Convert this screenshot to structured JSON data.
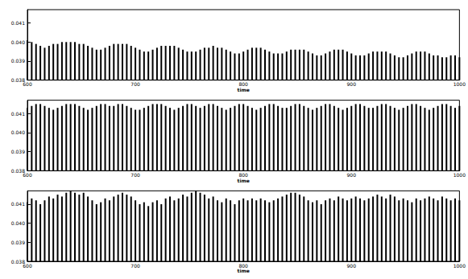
{
  "chart_data": [
    {
      "type": "bar",
      "x_label": "time",
      "color": "#000000",
      "xlim": [
        600,
        1000
      ],
      "xticks": [
        600,
        700,
        800,
        900,
        1000
      ],
      "ylim": [
        0.038,
        0.0417
      ],
      "yticks": [
        0.038,
        0.039,
        {
          "value": 0.04,
          "label": "0.040"
        },
        0.041
      ],
      "x": [
        600,
        604,
        608,
        612,
        616,
        620,
        624,
        628,
        632,
        636,
        640,
        644,
        648,
        652,
        656,
        660,
        664,
        668,
        672,
        676,
        680,
        684,
        688,
        692,
        696,
        700,
        704,
        708,
        712,
        716,
        720,
        724,
        728,
        732,
        736,
        740,
        744,
        748,
        752,
        756,
        760,
        764,
        768,
        772,
        776,
        780,
        784,
        788,
        792,
        796,
        800,
        804,
        808,
        812,
        816,
        820,
        824,
        828,
        832,
        836,
        840,
        844,
        848,
        852,
        856,
        860,
        864,
        868,
        872,
        876,
        880,
        884,
        888,
        892,
        896,
        900,
        904,
        908,
        912,
        916,
        920,
        924,
        928,
        932,
        936,
        940,
        944,
        948,
        952,
        956,
        960,
        964,
        968,
        972,
        976,
        980,
        984,
        988,
        992,
        996,
        1000
      ],
      "values": [
        0.0401,
        0.04,
        0.0399,
        0.0398,
        0.0397,
        0.0398,
        0.0399,
        0.0399,
        0.04,
        0.04,
        0.04,
        0.04,
        0.0399,
        0.0399,
        0.0398,
        0.0397,
        0.0396,
        0.0396,
        0.0397,
        0.0398,
        0.0399,
        0.0399,
        0.0399,
        0.0399,
        0.0398,
        0.0397,
        0.0396,
        0.0395,
        0.0395,
        0.0396,
        0.0397,
        0.0398,
        0.0398,
        0.0398,
        0.0398,
        0.0397,
        0.0396,
        0.0395,
        0.0395,
        0.0395,
        0.0396,
        0.0397,
        0.0397,
        0.0398,
        0.0397,
        0.0397,
        0.0396,
        0.0395,
        0.0394,
        0.0394,
        0.0395,
        0.0396,
        0.0397,
        0.0397,
        0.0397,
        0.0396,
        0.0395,
        0.0394,
        0.0394,
        0.0394,
        0.0395,
        0.0396,
        0.0396,
        0.0396,
        0.0396,
        0.0395,
        0.0394,
        0.0393,
        0.0393,
        0.0394,
        0.0395,
        0.0396,
        0.0396,
        0.0396,
        0.0395,
        0.0394,
        0.0393,
        0.0393,
        0.0393,
        0.0394,
        0.0395,
        0.0395,
        0.0395,
        0.0395,
        0.0394,
        0.0393,
        0.0392,
        0.0392,
        0.0393,
        0.0394,
        0.0395,
        0.0395,
        0.0395,
        0.0394,
        0.0393,
        0.0393,
        0.0392,
        0.0392,
        0.0393,
        0.0393,
        0.0392
      ]
    },
    {
      "type": "bar",
      "x_label": "time",
      "color": "#000000",
      "xlim": [
        600,
        1000
      ],
      "xticks": [
        600,
        700,
        800,
        900,
        1000
      ],
      "ylim": [
        0.038,
        0.0417
      ],
      "yticks": [
        0.038,
        0.039,
        {
          "value": 0.04,
          "label": "0.040"
        },
        0.041
      ],
      "x": [
        600,
        604,
        608,
        612,
        616,
        620,
        624,
        628,
        632,
        636,
        640,
        644,
        648,
        652,
        656,
        660,
        664,
        668,
        672,
        676,
        680,
        684,
        688,
        692,
        696,
        700,
        704,
        708,
        712,
        716,
        720,
        724,
        728,
        732,
        736,
        740,
        744,
        748,
        752,
        756,
        760,
        764,
        768,
        772,
        776,
        780,
        784,
        788,
        792,
        796,
        800,
        804,
        808,
        812,
        816,
        820,
        824,
        828,
        832,
        836,
        840,
        844,
        848,
        852,
        856,
        860,
        864,
        868,
        872,
        876,
        880,
        884,
        888,
        892,
        896,
        900,
        904,
        908,
        912,
        916,
        920,
        924,
        928,
        932,
        936,
        940,
        944,
        948,
        952,
        956,
        960,
        964,
        968,
        972,
        976,
        980,
        984,
        988,
        992,
        996,
        1000
      ],
      "values": [
        0.0413,
        0.0414,
        0.0415,
        0.0415,
        0.0414,
        0.0413,
        0.0412,
        0.0413,
        0.0414,
        0.0415,
        0.0415,
        0.0415,
        0.0414,
        0.0413,
        0.0412,
        0.0413,
        0.0414,
        0.0415,
        0.0415,
        0.0414,
        0.0414,
        0.0415,
        0.0415,
        0.0414,
        0.0413,
        0.0412,
        0.0412,
        0.0413,
        0.0414,
        0.0415,
        0.0415,
        0.0415,
        0.0414,
        0.0413,
        0.0412,
        0.0413,
        0.0414,
        0.0415,
        0.0415,
        0.0414,
        0.0413,
        0.0414,
        0.0415,
        0.0415,
        0.0414,
        0.0413,
        0.0412,
        0.0413,
        0.0414,
        0.0415,
        0.0415,
        0.0414,
        0.0413,
        0.0412,
        0.0413,
        0.0414,
        0.0415,
        0.0415,
        0.0414,
        0.0413,
        0.0413,
        0.0414,
        0.0415,
        0.0415,
        0.0414,
        0.0413,
        0.0412,
        0.0413,
        0.0414,
        0.0415,
        0.0415,
        0.0414,
        0.0413,
        0.0412,
        0.0413,
        0.0414,
        0.0415,
        0.0415,
        0.0414,
        0.0413,
        0.0413,
        0.0414,
        0.0415,
        0.0415,
        0.0414,
        0.0413,
        0.0412,
        0.0413,
        0.0414,
        0.0415,
        0.0415,
        0.0414,
        0.0413,
        0.0412,
        0.0413,
        0.0414,
        0.0415,
        0.0415,
        0.0414,
        0.0413,
        0.0414
      ]
    },
    {
      "type": "bar",
      "x_label": "time",
      "color": "#000000",
      "xlim": [
        600,
        1000
      ],
      "xticks": [
        600,
        700,
        800,
        900,
        1000
      ],
      "ylim": [
        0.038,
        0.0417
      ],
      "yticks": [
        0.038,
        0.039,
        {
          "value": 0.04,
          "label": "0.040"
        },
        0.041
      ],
      "x": [
        600,
        604,
        608,
        612,
        616,
        620,
        624,
        628,
        632,
        636,
        640,
        644,
        648,
        652,
        656,
        660,
        664,
        668,
        672,
        676,
        680,
        684,
        688,
        692,
        696,
        700,
        704,
        708,
        712,
        716,
        720,
        724,
        728,
        732,
        736,
        740,
        744,
        748,
        752,
        756,
        760,
        764,
        768,
        772,
        776,
        780,
        784,
        788,
        792,
        796,
        800,
        804,
        808,
        812,
        816,
        820,
        824,
        828,
        832,
        836,
        840,
        844,
        848,
        852,
        856,
        860,
        864,
        868,
        872,
        876,
        880,
        884,
        888,
        892,
        896,
        900,
        904,
        908,
        912,
        916,
        920,
        924,
        928,
        932,
        936,
        940,
        944,
        948,
        952,
        956,
        960,
        964,
        968,
        972,
        976,
        980,
        984,
        988,
        992,
        996,
        1000
      ],
      "values": [
        0.0411,
        0.0413,
        0.0412,
        0.041,
        0.0412,
        0.0414,
        0.0413,
        0.0415,
        0.0414,
        0.0416,
        0.0417,
        0.0416,
        0.0415,
        0.0416,
        0.0414,
        0.0412,
        0.041,
        0.0411,
        0.0413,
        0.0412,
        0.0414,
        0.0415,
        0.0416,
        0.0415,
        0.0414,
        0.0412,
        0.041,
        0.0411,
        0.0409,
        0.0411,
        0.0412,
        0.041,
        0.0413,
        0.0414,
        0.0412,
        0.0413,
        0.0415,
        0.0414,
        0.0416,
        0.0417,
        0.0416,
        0.0415,
        0.0413,
        0.0414,
        0.0412,
        0.0411,
        0.0413,
        0.0412,
        0.041,
        0.0412,
        0.0413,
        0.0412,
        0.0413,
        0.0412,
        0.0413,
        0.0412,
        0.0411,
        0.0412,
        0.0413,
        0.0414,
        0.0415,
        0.0416,
        0.0416,
        0.0415,
        0.0414,
        0.0412,
        0.0411,
        0.0412,
        0.041,
        0.0412,
        0.0413,
        0.0412,
        0.0414,
        0.0413,
        0.0412,
        0.0413,
        0.0414,
        0.0413,
        0.0412,
        0.0413,
        0.0414,
        0.0415,
        0.0414,
        0.0413,
        0.0415,
        0.0414,
        0.0412,
        0.0413,
        0.0412,
        0.0411,
        0.0413,
        0.0412,
        0.0413,
        0.0414,
        0.0413,
        0.0412,
        0.0414,
        0.0413,
        0.0412,
        0.0413,
        0.0412
      ]
    }
  ]
}
